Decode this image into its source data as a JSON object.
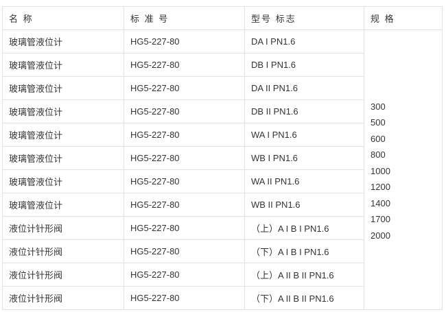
{
  "headers": [
    "名 称",
    "标 准 号",
    "型号 标志",
    "规 格"
  ],
  "rows": [
    {
      "name": "玻璃管液位计",
      "standard": "HG5-227-80",
      "model": "DA I PN1.6"
    },
    {
      "name": "玻璃管液位计",
      "standard": "HG5-227-80",
      "model": "DB I PN1.6"
    },
    {
      "name": "玻璃管液位计",
      "standard": "HG5-227-80",
      "model": "DA II PN1.6"
    },
    {
      "name": "玻璃管液位计",
      "standard": "HG5-227-80",
      "model": "DB II PN1.6"
    },
    {
      "name": "玻璃管液位计",
      "standard": "HG5-227-80",
      "model": "WA I PN1.6"
    },
    {
      "name": "玻璃管液位计",
      "standard": "HG5-227-80",
      "model": "WB I PN1.6"
    },
    {
      "name": "玻璃管液位计",
      "standard": "HG5-227-80",
      "model": "WA II PN1.6"
    },
    {
      "name": "玻璃管液位计",
      "standard": "HG5-227-80",
      "model": "WB II PN1.6"
    },
    {
      "name": "液位计针形阀",
      "standard": "HG5-227-80",
      "model": "（上）A I B I PN1.6"
    },
    {
      "name": "液位计针形阀",
      "standard": "HG5-227-80",
      "model": "（下）A I B I PN1.6"
    },
    {
      "name": "液位计针形阀",
      "standard": "HG5-227-80",
      "model": "（上）A II B II PN1.6"
    },
    {
      "name": "液位计针形阀",
      "standard": "HG5-227-80",
      "model": "（下）A II B II PN1.6"
    }
  ],
  "specs": [
    "300",
    "500",
    "600",
    "800",
    "1000",
    "1200",
    "1400",
    "1700",
    "2000"
  ]
}
